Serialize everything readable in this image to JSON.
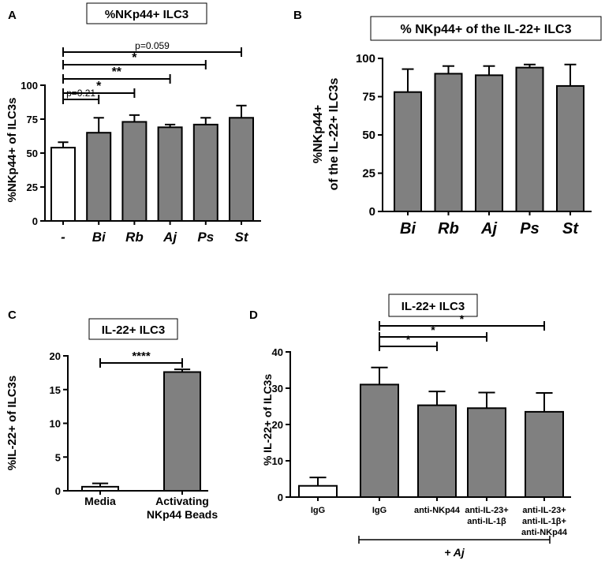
{
  "colors": {
    "control": "#ffffff",
    "treated": "#808080",
    "stroke": "#000000"
  },
  "chart_data": [
    {
      "panel": "A",
      "type": "bar",
      "title": "%NKp44+ ILC3",
      "ylabel": "%NKp44+ of ILC3s",
      "xlabel": "",
      "ylim": [
        0,
        100
      ],
      "yticks": [
        "0",
        "25",
        "50",
        "75",
        "100"
      ],
      "categories": [
        "-",
        "Bi",
        "Rb",
        "Aj",
        "Ps",
        "St"
      ],
      "values": [
        54,
        65,
        73,
        69,
        71,
        76
      ],
      "errors": [
        4,
        11,
        5,
        2,
        5,
        9
      ],
      "fills": [
        "control",
        "treated",
        "treated",
        "treated",
        "treated",
        "treated"
      ],
      "significance": [
        {
          "from": "-",
          "to": "Bi",
          "label": "p=0.21"
        },
        {
          "from": "-",
          "to": "Rb",
          "label": "*"
        },
        {
          "from": "-",
          "to": "Aj",
          "label": "**"
        },
        {
          "from": "-",
          "to": "Ps",
          "label": "*"
        },
        {
          "from": "-",
          "to": "St",
          "label": "p=0.059"
        }
      ]
    },
    {
      "panel": "B",
      "type": "bar",
      "title": "% NKp44+ of the IL-22+ ILC3",
      "ylabel_line1": "%NKp44+",
      "ylabel_line2": "of the IL-22+ ILC3s",
      "ylim": [
        0,
        100
      ],
      "yticks": [
        "0",
        "25",
        "50",
        "75",
        "100"
      ],
      "categories": [
        "Bi",
        "Rb",
        "Aj",
        "Ps",
        "St"
      ],
      "values": [
        78,
        90,
        89,
        94,
        82
      ],
      "errors": [
        15,
        5,
        6,
        2,
        14
      ],
      "fills": [
        "treated",
        "treated",
        "treated",
        "treated",
        "treated"
      ],
      "significance": []
    },
    {
      "panel": "C",
      "type": "bar",
      "title": "IL-22+ ILC3",
      "ylabel": "%IL-22+ of ILC3s",
      "ylim": [
        0,
        20
      ],
      "yticks": [
        "0",
        "5",
        "10",
        "15",
        "20"
      ],
      "categories": [
        [
          "Media"
        ],
        [
          "Activating",
          "NKp44 Beads"
        ]
      ],
      "values": [
        0.6,
        17.6
      ],
      "errors": [
        0.5,
        0.4
      ],
      "fills": [
        "control",
        "treated"
      ],
      "significance": [
        {
          "from": 0,
          "to": 1,
          "label": "****"
        }
      ]
    },
    {
      "panel": "D",
      "type": "bar",
      "title": "IL-22+ ILC3",
      "ylabel": "% IL-22+ of ILC3s",
      "ylim": [
        0,
        40
      ],
      "yticks": [
        "0",
        "10",
        "20",
        "30",
        "40"
      ],
      "categories": [
        [
          "IgG"
        ],
        [
          "IgG"
        ],
        [
          "anti-NKp44"
        ],
        [
          "anti-IL-23+",
          "anti-IL-1β"
        ],
        [
          "anti-IL-23+",
          "anti-IL-1β+",
          "anti-NKp44"
        ]
      ],
      "values": [
        3.1,
        31.0,
        25.3,
        24.5,
        23.5
      ],
      "errors": [
        2.3,
        4.7,
        3.8,
        4.3,
        5.2
      ],
      "fills": [
        "control",
        "treated",
        "treated",
        "treated",
        "treated"
      ],
      "significance": [
        {
          "from": 1,
          "to": 2,
          "label": "*"
        },
        {
          "from": 1,
          "to": 3,
          "label": "*"
        },
        {
          "from": 1,
          "to": 4,
          "label": "*"
        }
      ],
      "group_label": "+ Aj"
    }
  ],
  "panel_labels": [
    "A",
    "B",
    "C",
    "D"
  ]
}
